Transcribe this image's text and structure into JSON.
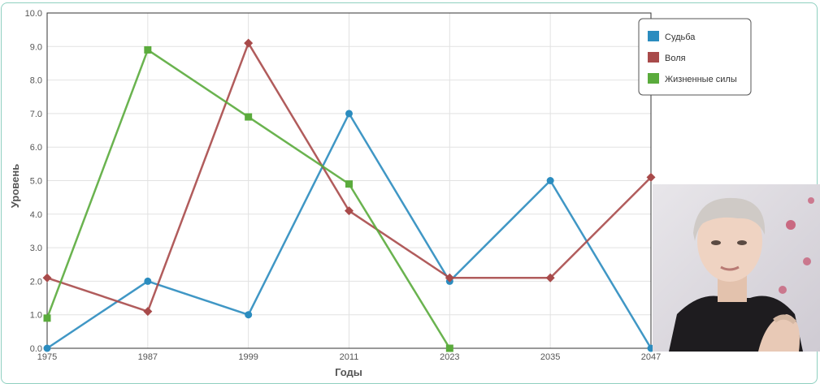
{
  "chart_data": {
    "type": "line",
    "title": "",
    "xlabel": "Годы",
    "ylabel": "Уровень",
    "x": [
      1975,
      1987,
      1999,
      2011,
      2023,
      2035,
      2047
    ],
    "x_tick_labels": [
      "1975",
      "1987",
      "1999",
      "2011",
      "2023",
      "2035",
      "2047"
    ],
    "y_tick_labels": [
      "0.0",
      "1.0",
      "2.0",
      "3.0",
      "4.0",
      "5.0",
      "6.0",
      "7.0",
      "8.0",
      "9.0",
      "10.0"
    ],
    "ylim": [
      0,
      10
    ],
    "grid": true,
    "legend_position": "top-right",
    "series": [
      {
        "name": "Судьба",
        "color": "#2b8cbf",
        "marker": "circle",
        "points": [
          [
            1975,
            0
          ],
          [
            1987,
            2
          ],
          [
            1999,
            1
          ],
          [
            2011,
            7
          ],
          [
            2023,
            2
          ],
          [
            2035,
            5
          ],
          [
            2047,
            0
          ]
        ]
      },
      {
        "name": "Воля",
        "color": "#a84a4a",
        "marker": "diamond",
        "points": [
          [
            1975,
            2.1
          ],
          [
            1987,
            1.1
          ],
          [
            1999,
            9.1
          ],
          [
            2011,
            4.1
          ],
          [
            2023,
            2.1
          ],
          [
            2035,
            2.1
          ],
          [
            2047,
            5.1
          ]
        ]
      },
      {
        "name": "Жизненные силы",
        "color": "#5aab3c",
        "marker": "square",
        "points": [
          [
            1975,
            0.9
          ],
          [
            1987,
            8.9
          ],
          [
            1999,
            6.9
          ],
          [
            2011,
            4.9
          ],
          [
            2023,
            0
          ]
        ]
      }
    ]
  }
}
